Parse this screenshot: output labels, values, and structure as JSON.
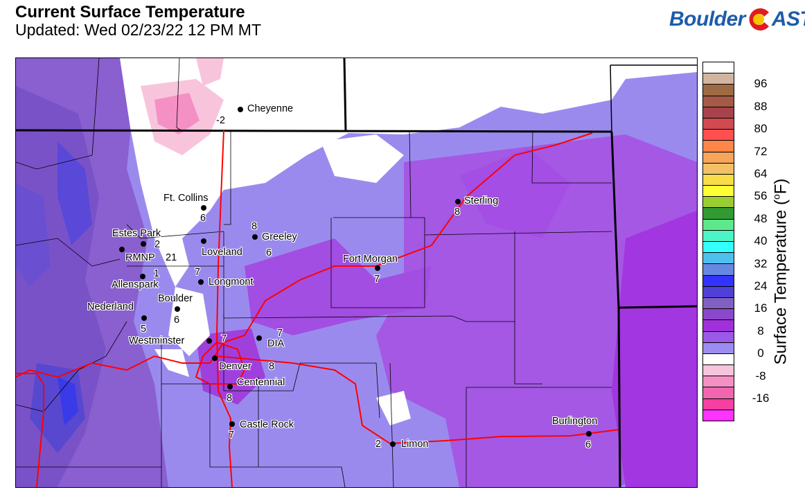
{
  "header": {
    "title": "Current Surface Temperature",
    "subtitle": "Updated: Wed 02/23/22 12 PM MT",
    "logo_text_left": "Boulder",
    "logo_text_right": "AST",
    "logo_full": "BoulderCAST"
  },
  "map": {
    "cities": [
      {
        "name": "Cheyenne",
        "value": "-2"
      },
      {
        "name": "Ft. Collins",
        "value": "6"
      },
      {
        "name": "Estes Park",
        "value": "2"
      },
      {
        "name": "RMNP",
        "value": "21"
      },
      {
        "name": "Loveland",
        "value": "6"
      },
      {
        "name": "Greeley",
        "value": "8"
      },
      {
        "name": "Allenspark",
        "value": "1"
      },
      {
        "name": "Longmont",
        "value": "7"
      },
      {
        "name": "Boulder",
        "value": "6"
      },
      {
        "name": "Nederland",
        "value": "5"
      },
      {
        "name": "Westminster",
        "value": "7"
      },
      {
        "name": "DIA",
        "value": "7"
      },
      {
        "name": "Denver",
        "value": "8"
      },
      {
        "name": "Centennial",
        "value": "8"
      },
      {
        "name": "Castle Rock",
        "value": "7"
      },
      {
        "name": "Fort Morgan",
        "value": "7"
      },
      {
        "name": "Sterling",
        "value": "8"
      },
      {
        "name": "Limon",
        "value": "2"
      },
      {
        "name": "Burlington",
        "value": "6"
      }
    ],
    "colors": {
      "road": "#ff0000",
      "base_field": "#9b8aee",
      "warmer_field": "#a050e0",
      "mountain_field": "#7e5ccc",
      "cold_field": "#ffffff",
      "below_zero": "#f8c4dc"
    }
  },
  "colorbar": {
    "label": "Surface Temperature (°F)",
    "label_main": "Surface Temperature (",
    "label_sup": "o",
    "label_end": "F)",
    "ticks": [
      "96",
      "88",
      "80",
      "72",
      "64",
      "56",
      "48",
      "40",
      "32",
      "24",
      "16",
      "8",
      "0",
      "-8",
      "-16"
    ],
    "colors": [
      "#ffffff",
      "#d2b4a0",
      "#9e6a43",
      "#a45a45",
      "#a6434c",
      "#d24a50",
      "#ff4f50",
      "#ff8548",
      "#f7a55a",
      "#f2c066",
      "#f9dc4a",
      "#ffff33",
      "#9acd32",
      "#339933",
      "#5de88c",
      "#4cf5c5",
      "#33ffff",
      "#4dc0ee",
      "#6688e0",
      "#3333ff",
      "#5040d8",
      "#8060c0",
      "#8c48cc",
      "#a030dd",
      "#9c58e6",
      "#9c8cf0",
      "#ffffff",
      "#f8c4dc",
      "#f590c4",
      "#f266b0",
      "#f540a0",
      "#ff33ff"
    ]
  }
}
